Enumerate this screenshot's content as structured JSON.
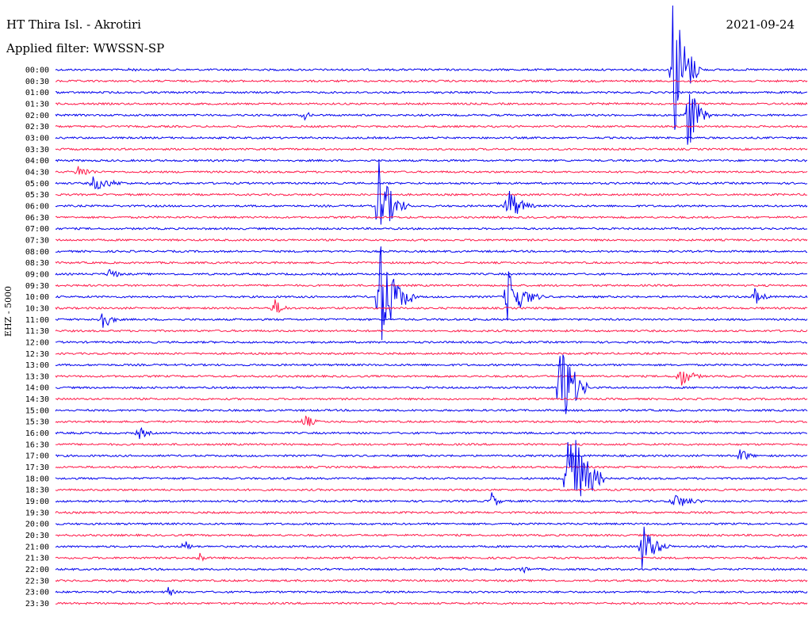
{
  "header": {
    "title": "HT Thira Isl. - Akrotiri",
    "filter": "Applied filter: WWSSN-SP",
    "date": "2021-09-24"
  },
  "channel_label": "EHZ - 5000",
  "colors": {
    "trace_a": "#0000ee",
    "trace_b": "#ff1a4a"
  },
  "chart_data": {
    "type": "line",
    "title": "HT Thira Isl. - Akrotiri",
    "xlabel": "",
    "ylabel": "EHZ - 5000",
    "row_labels": [
      "00:00",
      "00:30",
      "01:00",
      "01:30",
      "02:00",
      "02:30",
      "03:00",
      "03:30",
      "04:00",
      "04:30",
      "05:00",
      "05:30",
      "06:00",
      "06:30",
      "07:00",
      "07:30",
      "08:00",
      "08:30",
      "09:00",
      "09:30",
      "10:00",
      "10:30",
      "11:00",
      "11:30",
      "12:00",
      "12:30",
      "13:00",
      "13:30",
      "14:00",
      "14:30",
      "15:00",
      "15:30",
      "16:00",
      "16:30",
      "17:00",
      "17:30",
      "18:00",
      "18:30",
      "19:00",
      "19:30",
      "20:00",
      "20:30",
      "21:00",
      "21:30",
      "22:00",
      "22:30",
      "23:00",
      "23:30"
    ],
    "series_colors": [
      "#0000ee",
      "#ff1a4a"
    ],
    "events": [
      {
        "row": 0,
        "pos": 0.1,
        "amp": 6,
        "len": 0.015
      },
      {
        "row": 4,
        "pos": 0.33,
        "amp": 8,
        "len": 0.02
      },
      {
        "row": 9,
        "pos": 0.03,
        "amp": 10,
        "len": 0.04
      },
      {
        "row": 10,
        "pos": 0.05,
        "amp": 10,
        "len": 0.07
      },
      {
        "row": 0,
        "pos": 0.82,
        "amp": 120,
        "len": 0.04
      },
      {
        "row": 4,
        "pos": 0.84,
        "amp": 60,
        "len": 0.03
      },
      {
        "row": 12,
        "pos": 0.43,
        "amp": 60,
        "len": 0.04
      },
      {
        "row": 20,
        "pos": 0.43,
        "amp": 80,
        "len": 0.05
      },
      {
        "row": 12,
        "pos": 0.6,
        "amp": 30,
        "len": 0.04
      },
      {
        "row": 20,
        "pos": 0.6,
        "amp": 40,
        "len": 0.05
      },
      {
        "row": 22,
        "pos": 0.06,
        "amp": 18,
        "len": 0.03
      },
      {
        "row": 28,
        "pos": 0.67,
        "amp": 90,
        "len": 0.04
      },
      {
        "row": 36,
        "pos": 0.68,
        "amp": 110,
        "len": 0.05
      },
      {
        "row": 42,
        "pos": 0.78,
        "amp": 35,
        "len": 0.04
      },
      {
        "row": 42,
        "pos": 0.17,
        "amp": 12,
        "len": 0.02
      },
      {
        "row": 43,
        "pos": 0.19,
        "amp": 10,
        "len": 0.02
      },
      {
        "row": 38,
        "pos": 0.58,
        "amp": 14,
        "len": 0.02
      },
      {
        "row": 38,
        "pos": 0.82,
        "amp": 12,
        "len": 0.06
      },
      {
        "row": 34,
        "pos": 0.91,
        "amp": 12,
        "len": 0.03
      },
      {
        "row": 27,
        "pos": 0.83,
        "amp": 16,
        "len": 0.04
      },
      {
        "row": 20,
        "pos": 0.93,
        "amp": 12,
        "len": 0.03
      },
      {
        "row": 32,
        "pos": 0.11,
        "amp": 10,
        "len": 0.03
      },
      {
        "row": 31,
        "pos": 0.33,
        "amp": 12,
        "len": 0.03
      },
      {
        "row": 21,
        "pos": 0.29,
        "amp": 14,
        "len": 0.03
      },
      {
        "row": 18,
        "pos": 0.07,
        "amp": 10,
        "len": 0.03
      },
      {
        "row": 44,
        "pos": 0.62,
        "amp": 8,
        "len": 0.02
      },
      {
        "row": 46,
        "pos": 0.15,
        "amp": 8,
        "len": 0.02
      }
    ]
  }
}
